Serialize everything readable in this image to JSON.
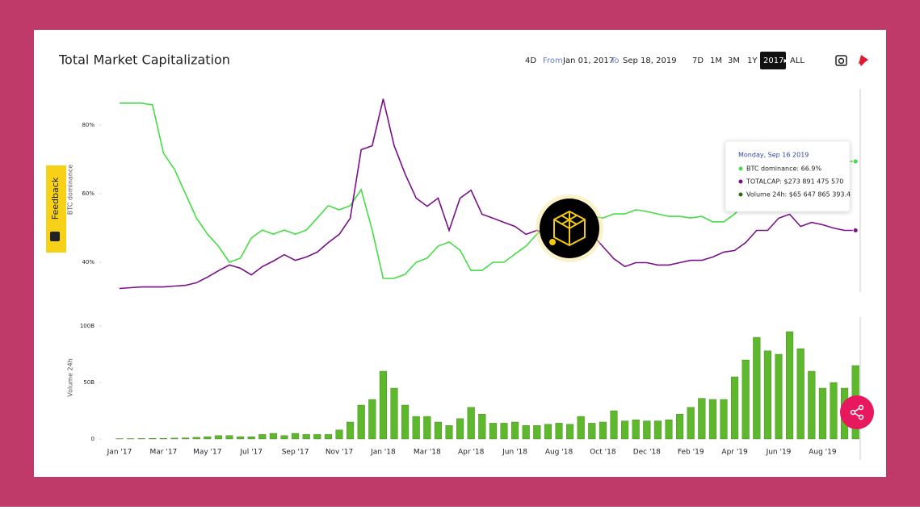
{
  "header": {
    "title": "Total Market Capitalization"
  },
  "controls": {
    "range_4d": "4D",
    "from_label": "From",
    "from_date": "Jan 01, 2017",
    "to_label": "To",
    "to_date": "Sep 18, 2019",
    "zoom": [
      "7D",
      "1M",
      "3M",
      "1Y",
      "2017▸",
      "ALL"
    ]
  },
  "feedback": "Feedback",
  "tooltip": {
    "date": "Monday, Sep 16 2019",
    "rows": [
      "BTC dominance: 66.9%",
      "TOTALCAP: $273 891 475 570",
      "Volume 24h: $65 647 865 393.4"
    ]
  },
  "chart_data": [
    {
      "type": "line",
      "ylim": [
        30,
        90
      ],
      "yticks": [
        {
          "value": 80,
          "label": "80%"
        },
        {
          "value": 60,
          "label": "60%"
        },
        {
          "value": 40,
          "label": "40%"
        }
      ],
      "y2lim": [
        0,
        880
      ],
      "series": [
        {
          "name": "BTC dominance",
          "color": "#44dd44",
          "values": [
            86.4,
            86.4,
            86.4,
            85.9,
            71.8,
            67.1,
            60.0,
            52.9,
            48.2,
            44.7,
            40.0,
            41.2,
            47.1,
            49.4,
            48.2,
            49.4,
            48.2,
            49.4,
            52.9,
            56.5,
            55.3,
            56.5,
            61.2,
            49.4,
            35.3,
            35.3,
            36.5,
            40.0,
            41.2,
            44.7,
            45.9,
            43.5,
            37.6,
            37.6,
            40.0,
            40.0,
            42.4,
            44.7,
            48.2,
            50.6,
            51.8,
            52.9,
            52.9,
            53.4,
            52.9,
            54.1,
            54.1,
            55.3,
            54.8,
            54.1,
            53.4,
            53.4,
            52.9,
            53.4,
            51.8,
            51.8,
            54.1,
            57.6,
            58.8,
            60.0,
            60.0,
            61.2,
            63.5,
            65.9,
            67.1,
            68.2,
            69.4,
            69.4
          ]
        },
        {
          "color": "#7a0f8a",
          "axis": "y2",
          "values": [
            34.5,
            38,
            41,
            41,
            41,
            45,
            48,
            59,
            83,
            110,
            135,
            121,
            93,
            128,
            152,
            179,
            155,
            169,
            190,
            231,
            266,
            335,
            628,
            645,
            845,
            645,
            524,
            421,
            386,
            421,
            283,
            421,
            455,
            352,
            335,
            317,
            300,
            266,
            283,
            266,
            248,
            266,
            266,
            266,
            214,
            162,
            128,
            145,
            145,
            135,
            135,
            145,
            155,
            155,
            169,
            190,
            197,
            231,
            283,
            283,
            335,
            352,
            300,
            317,
            307,
            293,
            283,
            283
          ]
        }
      ]
    },
    {
      "type": "bar",
      "categories": [
        "Jan '17",
        null,
        null,
        null,
        "Mar '17",
        null,
        null,
        null,
        "May '17",
        null,
        null,
        null,
        "Jul '17",
        null,
        null,
        null,
        "Sep '17",
        null,
        null,
        null,
        "Nov '17",
        null,
        null,
        null,
        "Jan '18",
        null,
        null,
        null,
        "Mar '18",
        null,
        null,
        null,
        "Apr '18",
        null,
        null,
        null,
        "Jun '18",
        null,
        null,
        null,
        "Aug '18",
        null,
        null,
        null,
        "Oct '18",
        null,
        null,
        null,
        "Dec '18",
        null,
        null,
        null,
        "Feb '19",
        null,
        null,
        null,
        "Apr '19",
        null,
        null,
        null,
        "Jun '19",
        null,
        null,
        null,
        "Aug '19",
        null,
        null,
        null
      ],
      "ylim": [
        0,
        110
      ],
      "yticks": [
        0,
        {
          "value": 50,
          "label": "50B"
        },
        {
          "value": 100,
          "label": "100B"
        }
      ],
      "series": [
        {
          "name": "Volume 24h",
          "color": "#5db82c",
          "values": [
            0.3,
            0.3,
            0.4,
            0.5,
            0.6,
            0.8,
            1,
            1.5,
            2,
            3,
            3,
            2,
            2,
            4,
            5,
            3,
            5,
            4,
            4,
            4,
            8,
            15,
            30,
            35,
            60,
            45,
            30,
            20,
            20,
            15,
            12,
            18,
            28,
            22,
            14,
            14,
            15,
            12,
            12,
            13,
            14,
            13,
            20,
            14,
            15,
            25,
            16,
            17,
            16,
            16,
            17,
            22,
            28,
            36,
            35,
            35,
            55,
            70,
            90,
            78,
            75,
            95,
            80,
            60,
            45,
            50,
            45,
            65
          ]
        }
      ]
    }
  ]
}
